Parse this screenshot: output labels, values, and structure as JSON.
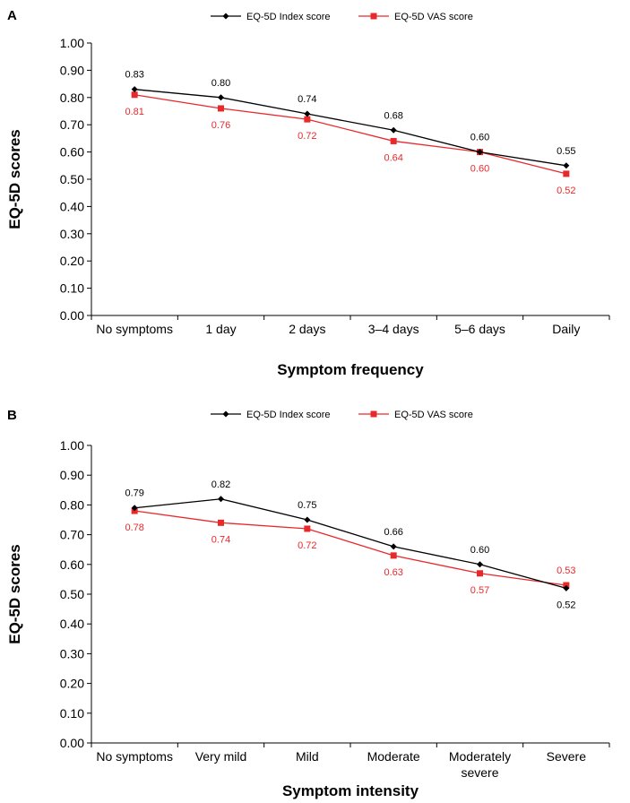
{
  "chart_data": [
    {
      "panel": "A",
      "type": "line",
      "categories": [
        "No symptoms",
        "1 day",
        "2 days",
        "3–4 days",
        "5–6 days",
        "Daily"
      ],
      "series": [
        {
          "name": "EQ-5D Index score",
          "values": [
            0.83,
            0.8,
            0.74,
            0.68,
            0.6,
            0.55
          ],
          "labels": [
            "0.83",
            "0.80",
            "0.74",
            "0.68",
            "0.60",
            "0.55"
          ],
          "color": "#000000",
          "marker": "diamond"
        },
        {
          "name": "EQ-5D VAS score",
          "values": [
            0.81,
            0.76,
            0.72,
            0.64,
            0.6,
            0.52
          ],
          "labels": [
            "0.81",
            "0.76",
            "0.72",
            "0.64",
            "0.60",
            "0.52"
          ],
          "color": "#e8292b",
          "marker": "square"
        }
      ],
      "xlabel": "Symptom frequency",
      "ylabel": "EQ-5D scores",
      "ylim": [
        0,
        1
      ],
      "yticks": [
        "0.00",
        "0.10",
        "0.20",
        "0.30",
        "0.40",
        "0.50",
        "0.60",
        "0.70",
        "0.80",
        "0.90",
        "1.00"
      ],
      "grid": false,
      "legend": "top-center"
    },
    {
      "panel": "B",
      "type": "line",
      "categories": [
        "No symptoms",
        "Very mild",
        "Mild",
        "Moderate",
        "Moderately severe",
        "Severe"
      ],
      "series": [
        {
          "name": "EQ-5D Index score",
          "values": [
            0.79,
            0.82,
            0.75,
            0.66,
            0.6,
            0.52
          ],
          "labels": [
            "0.79",
            "0.82",
            "0.75",
            "0.66",
            "0.60",
            "0.52"
          ],
          "color": "#000000",
          "marker": "diamond"
        },
        {
          "name": "EQ-5D VAS score",
          "values": [
            0.78,
            0.74,
            0.72,
            0.63,
            0.57,
            0.53
          ],
          "labels": [
            "0.78",
            "0.74",
            "0.72",
            "0.63",
            "0.57",
            "0.53"
          ],
          "color": "#e8292b",
          "marker": "square"
        }
      ],
      "xlabel": "Symptom intensity",
      "ylabel": "EQ-5D scores",
      "ylim": [
        0,
        1
      ],
      "yticks": [
        "0.00",
        "0.10",
        "0.20",
        "0.30",
        "0.40",
        "0.50",
        "0.60",
        "0.70",
        "0.80",
        "0.90",
        "1.00"
      ],
      "grid": false,
      "legend": "top-center"
    }
  ]
}
